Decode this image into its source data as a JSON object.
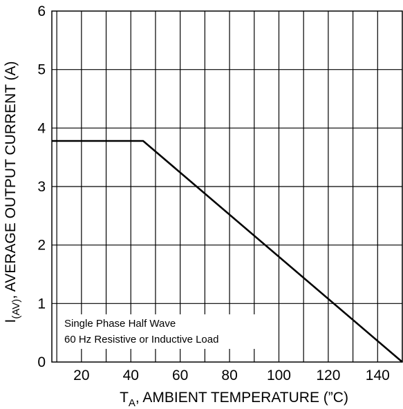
{
  "chart_data": {
    "type": "line",
    "title": "",
    "xlabel": {
      "main": "T",
      "sub": "A",
      "rest": ", AMBIENT TEMPERATURE (”C)"
    },
    "ylabel": {
      "main": "I",
      "sub": "(AV)",
      "rest": ", AVERAGE OUTPUT CURRENT (A)"
    },
    "xlim": [
      8,
      150
    ],
    "ylim": [
      0,
      6
    ],
    "x_ticks": [
      20,
      40,
      60,
      80,
      100,
      120,
      140
    ],
    "y_ticks": [
      0,
      1,
      2,
      3,
      4,
      5,
      6
    ],
    "x_grid_step": 10,
    "y_grid_step": 1,
    "grid": true,
    "series": [
      {
        "x": [
          8,
          45,
          150
        ],
        "y": [
          3.78,
          3.78,
          0
        ]
      }
    ],
    "annotations": [
      "Single Phase Half Wave",
      "60 Hz Resistive or Inductive Load"
    ]
  }
}
